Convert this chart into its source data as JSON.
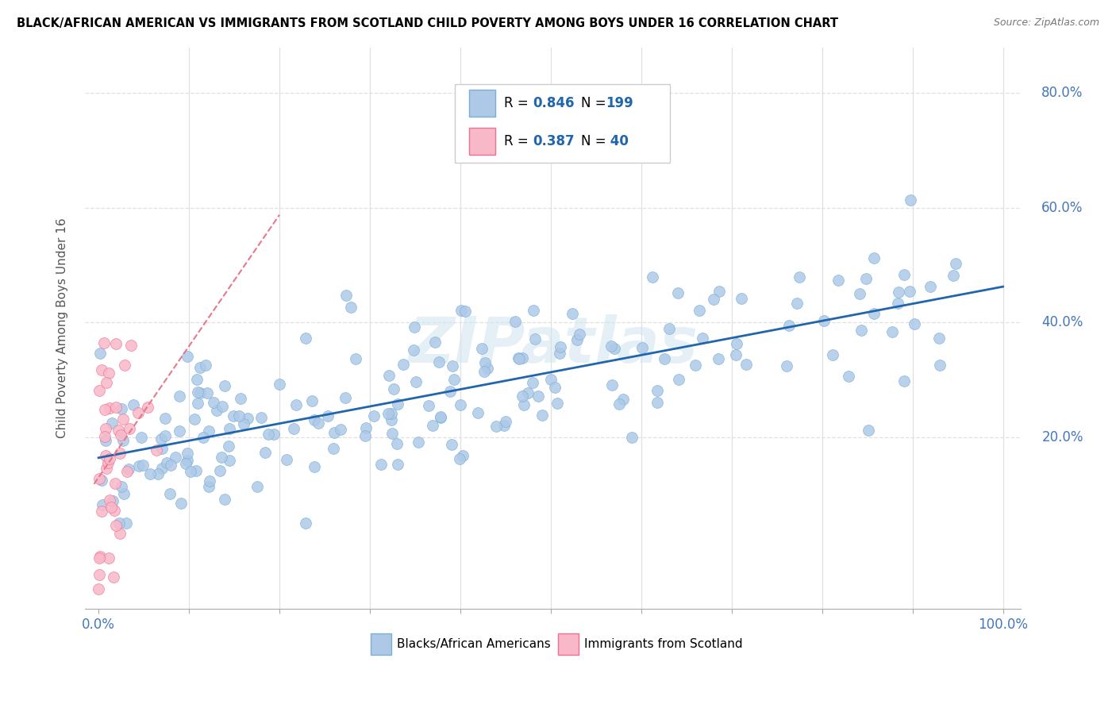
{
  "title": "BLACK/AFRICAN AMERICAN VS IMMIGRANTS FROM SCOTLAND CHILD POVERTY AMONG BOYS UNDER 16 CORRELATION CHART",
  "source": "Source: ZipAtlas.com",
  "ylabel": "Child Poverty Among Boys Under 16",
  "blue_fill_color": "#aec9e8",
  "blue_edge_color": "#7bafd4",
  "pink_fill_color": "#f9b8c8",
  "pink_edge_color": "#f07090",
  "blue_line_color": "#2166ac",
  "pink_line_color": "#e8788a",
  "R_blue": 0.846,
  "N_blue": 199,
  "R_pink": 0.387,
  "N_pink": 40,
  "watermark": "ZIPatlas",
  "background_color": "#ffffff",
  "grid_color": "#e0e0e0",
  "title_color": "#000000",
  "axis_tick_color": "#4477bb",
  "legend_R_color": "#2166ac",
  "legend_N_color": "#2166ac",
  "legend_label_color": "#000000"
}
